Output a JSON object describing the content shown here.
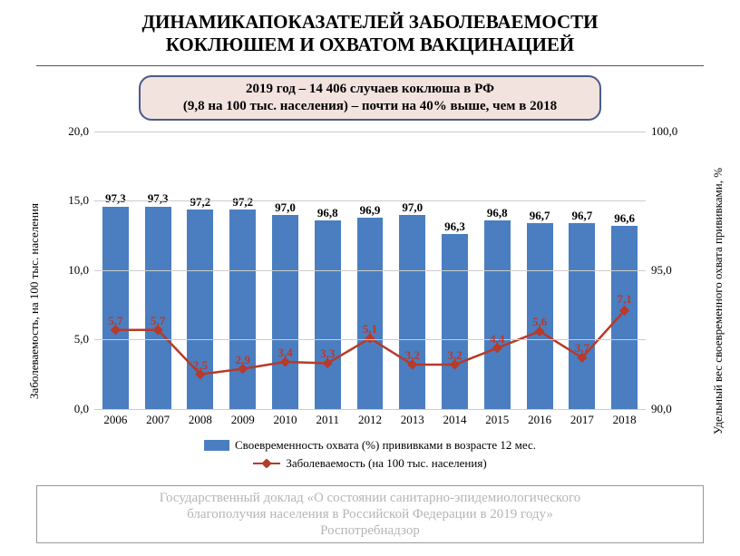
{
  "title_line1": "ДИНАМИКАПОКАЗАТЕЛЕЙ ЗАБОЛЕВАЕМОСТИ",
  "title_line2": "КОКЛЮШЕМ И ОХВАТОМ ВАКЦИНАЦИЕЙ",
  "callout_line1": "2019 год – 14 406 случаев коклюша в РФ",
  "callout_line2": "(9,8 на 100 тыс. населения) – почти на 40% выше, чем в 2018",
  "chart": {
    "type": "bar+line-dual-axis",
    "categories": [
      "2006",
      "2007",
      "2008",
      "2009",
      "2010",
      "2011",
      "2012",
      "2013",
      "2014",
      "2015",
      "2016",
      "2017",
      "2018"
    ],
    "bars": {
      "values": [
        97.3,
        97.3,
        97.2,
        97.2,
        97.0,
        96.8,
        96.9,
        97.0,
        96.3,
        96.8,
        96.7,
        96.7,
        96.6
      ],
      "labels": [
        "97,3",
        "97,3",
        "97,2",
        "97,2",
        "97,0",
        "96,8",
        "96,9",
        "97,0",
        "96,3",
        "96,8",
        "96,7",
        "96,7",
        "96,6"
      ],
      "color": "#4a7ec0",
      "axis": "right",
      "axis_min": 90.0,
      "axis_max": 100.0,
      "bar_width_frac": 0.62
    },
    "line": {
      "values": [
        5.7,
        5.7,
        2.5,
        2.9,
        3.4,
        3.3,
        5.1,
        3.2,
        3.2,
        4.4,
        5.6,
        3.7,
        7.1
      ],
      "labels": [
        "5,7",
        "5,7",
        "2,5",
        "2,9",
        "3,4",
        "3,3",
        "5,1",
        "3,2",
        "3,2",
        "4,4",
        "5,6",
        "3,7",
        "7,1"
      ],
      "color": "#b73a2a",
      "axis": "left",
      "axis_min": 0.0,
      "axis_max": 20.0,
      "marker": "diamond",
      "marker_size": 8,
      "line_width": 2.5
    },
    "y_left": {
      "label": "Заболеваемость, на 100 тыс. населения",
      "ticks": [
        0.0,
        5.0,
        10.0,
        15.0,
        20.0
      ],
      "tick_labels": [
        "0,0",
        "5,0",
        "10,0",
        "15,0",
        "20,0"
      ]
    },
    "y_right": {
      "label": "Удельный вес своевременного охвата\nпрививками, %",
      "ticks": [
        90.0,
        95.0,
        100.0
      ],
      "tick_labels": [
        "90,0",
        "95,0",
        "100,0"
      ]
    },
    "grid_color": "#cccccc",
    "background": "#ffffff",
    "legend": {
      "bar": "Своевременность охвата (%) прививками в возрасте 12 мес.",
      "line": "Заболеваемость (на 100 тыс. населения)"
    },
    "label_fontsize": 13,
    "title_fontsize": 21
  },
  "footer_line1": "Государственный доклад «О состоянии санитарно-эпидемиологического",
  "footer_line2": "благополучия населения в Российской Федерации в 2019 году»",
  "footer_line3": "Роспотребнадзор"
}
